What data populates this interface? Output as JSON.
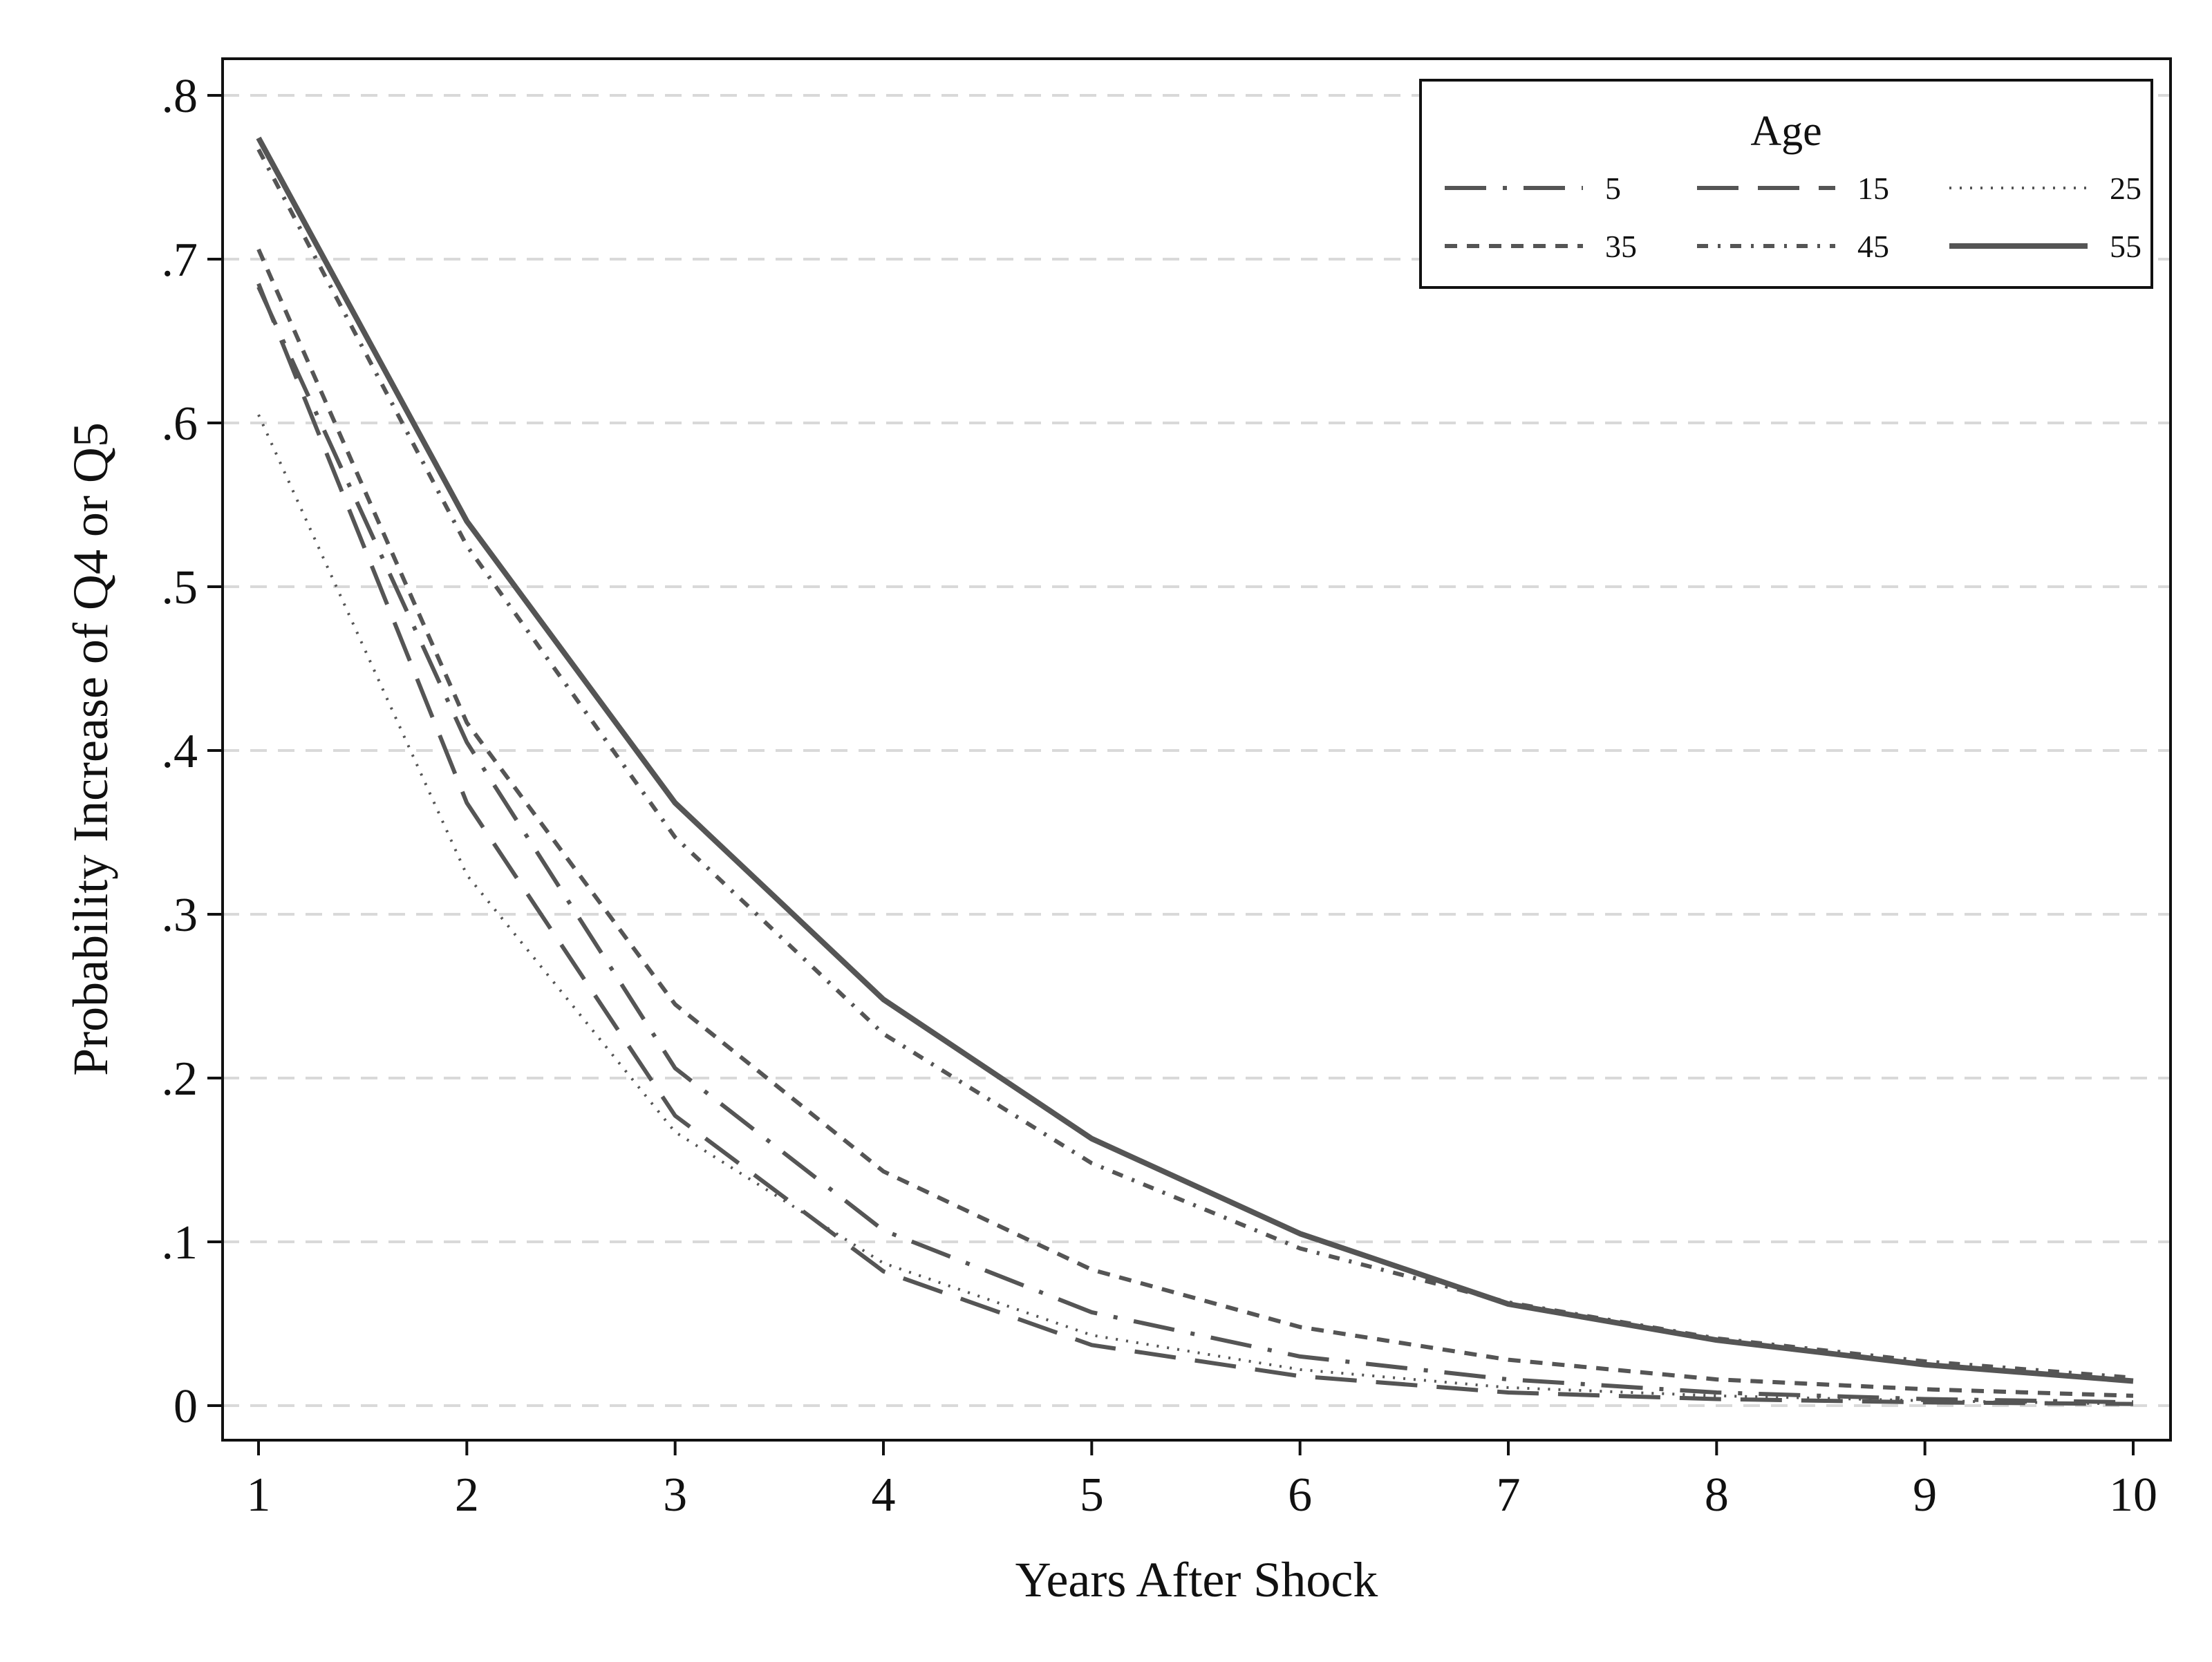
{
  "chart_data": {
    "type": "line",
    "xlabel": "Years After Shock",
    "ylabel": "Probability Increase of Q4 or Q5",
    "xlim": [
      1,
      10
    ],
    "ylim": [
      0,
      0.8
    ],
    "x": [
      1,
      2,
      3,
      4,
      5,
      6,
      7,
      8,
      9,
      10
    ],
    "x_ticks": [
      {
        "value": 1,
        "label": "1"
      },
      {
        "value": 2,
        "label": "2"
      },
      {
        "value": 3,
        "label": "3"
      },
      {
        "value": 4,
        "label": "4"
      },
      {
        "value": 5,
        "label": "5"
      },
      {
        "value": 6,
        "label": "6"
      },
      {
        "value": 7,
        "label": "7"
      },
      {
        "value": 8,
        "label": "8"
      },
      {
        "value": 9,
        "label": "9"
      },
      {
        "value": 10,
        "label": "10"
      }
    ],
    "y_ticks": [
      {
        "value": 0,
        "label": "0"
      },
      {
        "value": 0.1,
        "label": ".1"
      },
      {
        "value": 0.2,
        "label": ".2"
      },
      {
        "value": 0.3,
        "label": ".3"
      },
      {
        "value": 0.4,
        "label": ".4"
      },
      {
        "value": 0.5,
        "label": ".5"
      },
      {
        "value": 0.6,
        "label": ".6"
      },
      {
        "value": 0.7,
        "label": ".7"
      },
      {
        "value": 0.8,
        "label": ".8"
      }
    ],
    "grid": "horizontal dashed",
    "legend": {
      "title": "Age",
      "placement": "top-right",
      "columns": 3
    },
    "line_color": "#555555",
    "grid_color": "#d9d9d9",
    "series": [
      {
        "name": "5",
        "style": "long-dash-dot",
        "values": [
          0.683,
          0.405,
          0.206,
          0.107,
          0.057,
          0.03,
          0.016,
          0.008,
          0.004,
          0.002
        ]
      },
      {
        "name": "15",
        "style": "long-dash",
        "values": [
          0.685,
          0.368,
          0.177,
          0.082,
          0.037,
          0.018,
          0.008,
          0.004,
          0.002,
          0.001
        ]
      },
      {
        "name": "25",
        "style": "dot",
        "values": [
          0.605,
          0.324,
          0.167,
          0.087,
          0.043,
          0.022,
          0.011,
          0.006,
          0.003,
          0.001
        ]
      },
      {
        "name": "35",
        "style": "short-dash",
        "values": [
          0.706,
          0.417,
          0.245,
          0.143,
          0.083,
          0.048,
          0.028,
          0.016,
          0.01,
          0.006
        ]
      },
      {
        "name": "45",
        "style": "short-dash-dot",
        "values": [
          0.767,
          0.525,
          0.347,
          0.227,
          0.148,
          0.096,
          0.063,
          0.041,
          0.027,
          0.017
        ]
      },
      {
        "name": "55",
        "style": "solid",
        "values": [
          0.774,
          0.54,
          0.368,
          0.248,
          0.163,
          0.105,
          0.062,
          0.04,
          0.025,
          0.015
        ]
      }
    ]
  }
}
